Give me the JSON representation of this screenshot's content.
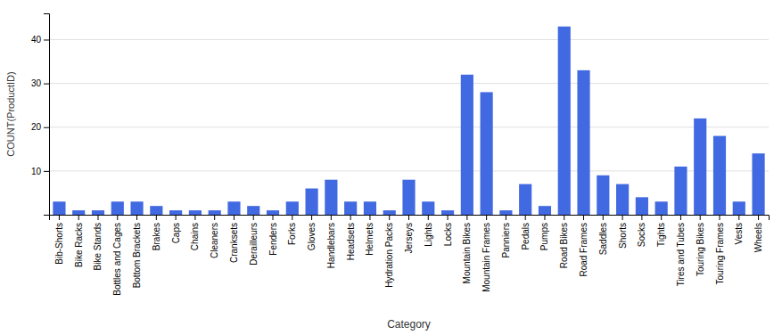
{
  "chart_data": {
    "type": "bar",
    "categories": [
      "Bib-Shorts",
      "Bike Racks",
      "Bike Stands",
      "Bottles and Cages",
      "Bottom Brackets",
      "Brakes",
      "Caps",
      "Chains",
      "Cleaners",
      "Cranksets",
      "Derailleurs",
      "Fenders",
      "Forks",
      "Gloves",
      "Handlebars",
      "Headsets",
      "Helmets",
      "Hydration Packs",
      "Jerseys",
      "Lights",
      "Locks",
      "Mountain Bikes",
      "Mountain Frames",
      "Panniers",
      "Pedals",
      "Pumps",
      "Road Bikes",
      "Road Frames",
      "Saddles",
      "Shorts",
      "Socks",
      "Tights",
      "Tires and Tubes",
      "Touring Bikes",
      "Touring Frames",
      "Vests",
      "Wheels"
    ],
    "values": [
      3,
      1,
      1,
      3,
      3,
      2,
      1,
      1,
      1,
      3,
      2,
      1,
      3,
      6,
      8,
      3,
      3,
      1,
      8,
      3,
      1,
      32,
      28,
      1,
      7,
      2,
      43,
      33,
      9,
      7,
      4,
      3,
      11,
      22,
      18,
      3,
      14
    ],
    "color": "#4169e1",
    "xlabel": "Category",
    "ylabel": "COUNT(ProductID)",
    "ylim": [
      0,
      46
    ],
    "yticks": [
      10,
      20,
      30,
      40
    ],
    "grid": true
  }
}
